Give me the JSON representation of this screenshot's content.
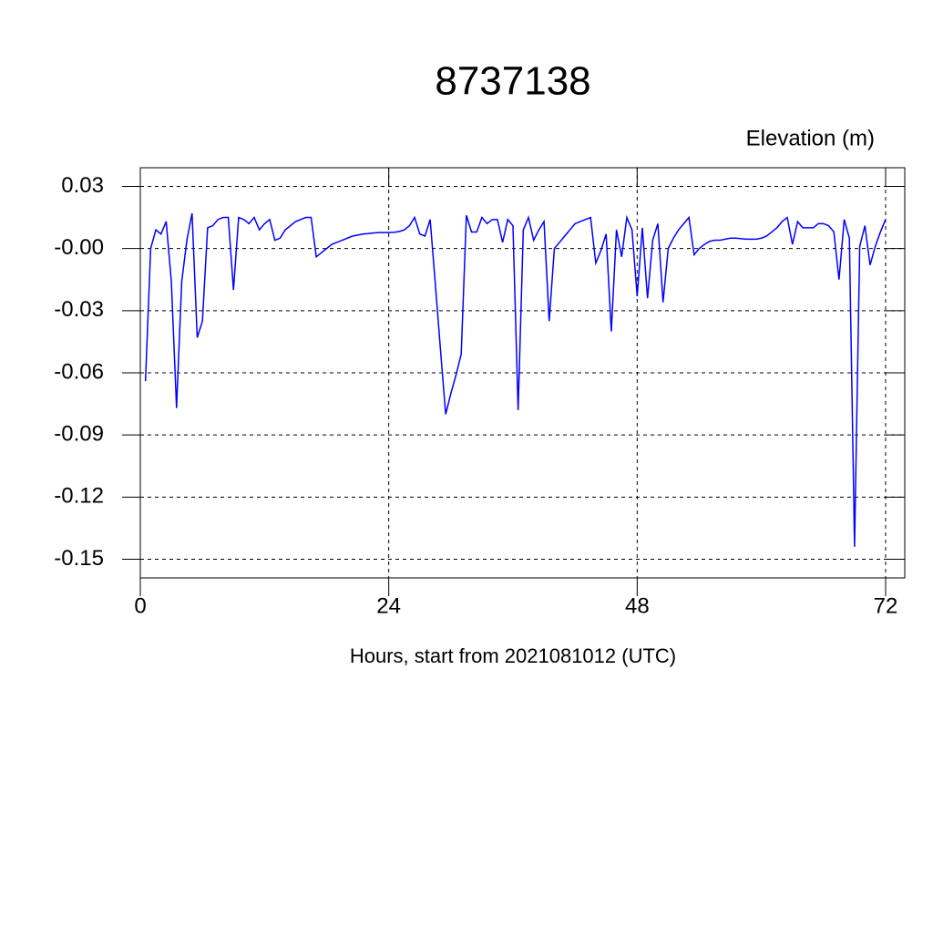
{
  "chart_data": {
    "type": "line",
    "title": "8737138",
    "subtitle": "Elevation (m)",
    "x_label": "Hours, start from 2021081012 (UTC)",
    "x": [
      0.5,
      1,
      1.5,
      2,
      2.5,
      3,
      3.5,
      4,
      4.5,
      5,
      5.5,
      6,
      6.5,
      7,
      7.5,
      8,
      8.5,
      9,
      9.5,
      10,
      10.5,
      11,
      11.5,
      12,
      12.5,
      13,
      13.5,
      14,
      14.5,
      15,
      15.5,
      16,
      16.5,
      17,
      17.5,
      18,
      18.5,
      19,
      19.5,
      20,
      20.5,
      21,
      21.5,
      22,
      22.5,
      23,
      23.5,
      24,
      24.5,
      25,
      25.5,
      26,
      26.5,
      27,
      27.5,
      28,
      28.5,
      29,
      29.5,
      30,
      30.5,
      31,
      31.5,
      32,
      32.5,
      33,
      33.5,
      34,
      34.5,
      35,
      35.5,
      36,
      36.5,
      37,
      37.5,
      38,
      38.5,
      39,
      39.5,
      40,
      40.5,
      41,
      41.5,
      42,
      42.5,
      43,
      43.5,
      44,
      44.5,
      45,
      45.5,
      46,
      46.5,
      47,
      47.5,
      48,
      48.5,
      49,
      49.5,
      50,
      50.5,
      51,
      51.5,
      52,
      52.5,
      53,
      53.5,
      54,
      54.5,
      55,
      55.5,
      56,
      56.5,
      57,
      57.5,
      58,
      58.5,
      59,
      59.5,
      60,
      60.5,
      61,
      61.5,
      62,
      62.5,
      63,
      63.5,
      64,
      64.5,
      65,
      65.5,
      66,
      66.5,
      67,
      67.5,
      68,
      68.5,
      69,
      69.5,
      70,
      70.5,
      71,
      71.5,
      72
    ],
    "series": [
      {
        "color": "#0000ff",
        "values": [
          -0.064,
          0.0,
          0.009,
          0.007,
          0.013,
          -0.016,
          -0.077,
          -0.016,
          0.004,
          0.017,
          -0.043,
          -0.035,
          0.01,
          0.011,
          0.014,
          0.015,
          0.015,
          -0.02,
          0.015,
          0.014,
          0.012,
          0.015,
          0.009,
          0.012,
          0.014,
          0.004,
          0.005,
          0.009,
          0.011,
          0.013,
          0.014,
          0.015,
          0.015,
          -0.004,
          -0.002,
          0.0,
          0.002,
          0.003,
          0.004,
          0.005,
          0.006,
          0.0065,
          0.007,
          0.0072,
          0.0075,
          0.0077,
          0.0077,
          0.0077,
          0.0078,
          0.0082,
          0.009,
          0.011,
          0.015,
          0.007,
          0.006,
          0.014,
          -0.017,
          -0.049,
          -0.08,
          -0.07,
          -0.061,
          -0.051,
          0.016,
          0.008,
          0.008,
          0.015,
          0.012,
          0.014,
          0.014,
          0.003,
          0.014,
          0.011,
          -0.078,
          0.009,
          0.015,
          0.004,
          0.009,
          0.013,
          -0.035,
          0.0,
          0.003,
          0.006,
          0.009,
          0.012,
          0.013,
          0.014,
          0.015,
          -0.007,
          -0.001,
          0.007,
          -0.04,
          0.009,
          -0.004,
          0.015,
          0.009,
          -0.023,
          0.01,
          -0.024,
          0.004,
          0.012,
          -0.026,
          0.0,
          0.005,
          0.009,
          0.012,
          0.015,
          -0.003,
          0.0,
          0.002,
          0.0035,
          0.004,
          0.004,
          0.0045,
          0.005,
          0.005,
          0.0048,
          0.0045,
          0.0045,
          0.0045,
          0.005,
          0.006,
          0.008,
          0.01,
          0.013,
          0.015,
          0.002,
          0.013,
          0.01,
          0.01,
          0.01,
          0.012,
          0.012,
          0.011,
          0.008,
          -0.015,
          0.014,
          0.005,
          -0.144,
          0.001,
          0.011,
          -0.008,
          0.001,
          0.008,
          0.014
        ]
      }
    ],
    "xlim": [
      0,
      73.85
    ],
    "ylim": [
      -0.159,
      0.039
    ],
    "xticks": [
      0,
      24,
      48,
      72
    ],
    "yticks": [
      0.03,
      {
        "value": 0,
        "label": "-0.00"
      },
      -0.03,
      -0.06,
      -0.09,
      -0.12,
      -0.15
    ],
    "grid": true
  }
}
